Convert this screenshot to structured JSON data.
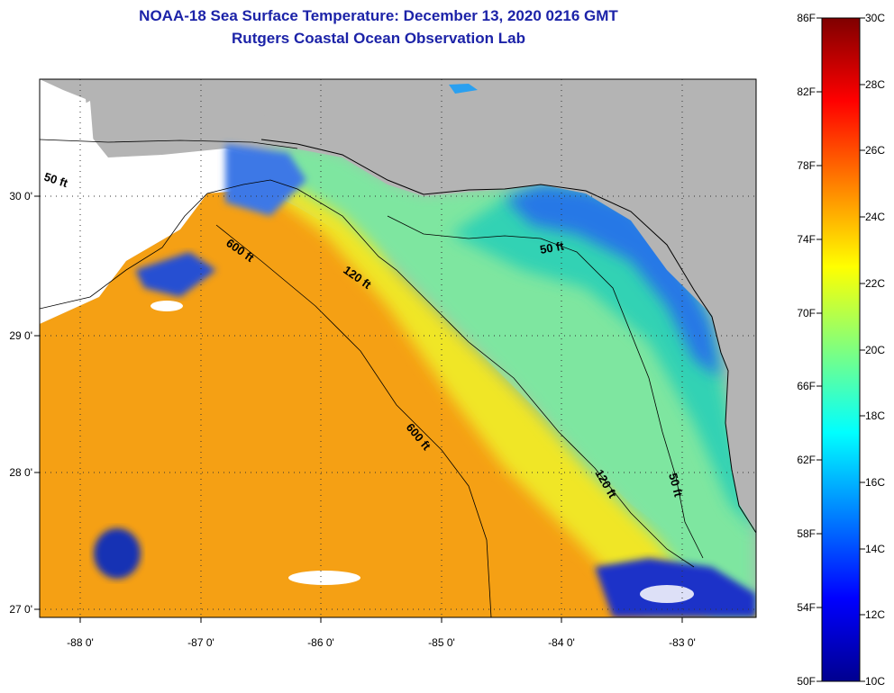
{
  "header": {
    "title": "NOAA-18 Sea Surface Temperature:  December 13, 2020 0216 GMT",
    "subtitle": "Rutgers Coastal Ocean Observation Lab"
  },
  "axes": {
    "lon_ticks": [
      "-88 0'",
      "-87 0'",
      "-86 0'",
      "-85 0'",
      "-84 0'",
      "-83 0'"
    ],
    "lat_ticks": [
      "30 0'",
      "29 0'",
      "28 0'",
      "27 0'"
    ]
  },
  "contours": {
    "labels": [
      "50 ft",
      "600 ft",
      "120 ft",
      "50 ft",
      "600 ft",
      "120 ft",
      "50 ft"
    ]
  },
  "colorbar": {
    "fahrenheit": [
      "86F",
      "82F",
      "78F",
      "74F",
      "70F",
      "66F",
      "62F",
      "58F",
      "54F",
      "50F"
    ],
    "celsius": [
      "30C",
      "28C",
      "26C",
      "24C",
      "22C",
      "20C",
      "18C",
      "16C",
      "14C",
      "12C",
      "10C"
    ]
  },
  "colors": {
    "title": "#1c23a8",
    "land": "#b4b4b4",
    "no_data": "#ffffff",
    "warm": "#f5a014",
    "mid": "#f0e628",
    "cool": "#32d2b4",
    "cold": "#1e50dc"
  }
}
